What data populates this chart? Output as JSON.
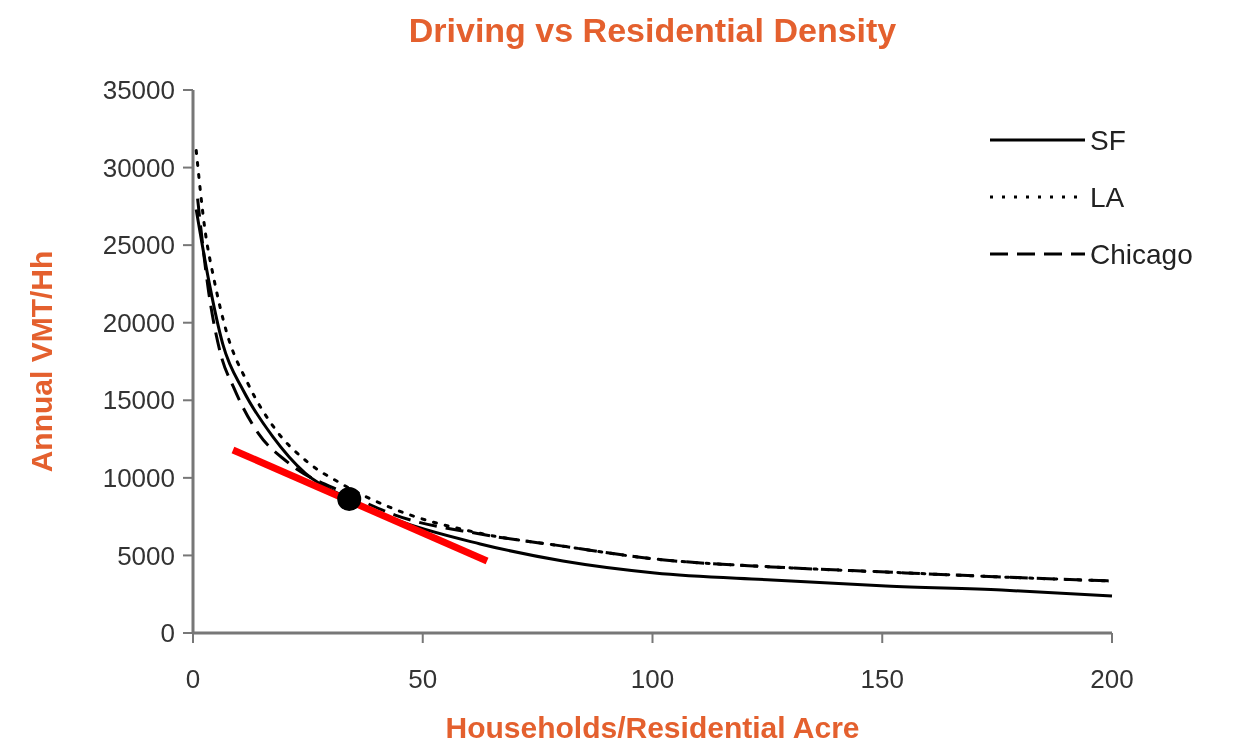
{
  "chart_data": {
    "type": "line",
    "title": "Driving vs Residential Density",
    "xlabel": "Households/Residential Acre",
    "ylabel": "Annual VMT/Hh",
    "xlim": [
      0,
      200
    ],
    "ylim": [
      0,
      35000
    ],
    "xticks": [
      0,
      50,
      100,
      150,
      200
    ],
    "yticks": [
      0,
      5000,
      10000,
      15000,
      20000,
      25000,
      30000,
      35000
    ],
    "legend": "top right",
    "grid": false,
    "series": [
      {
        "name": "SF",
        "color": "#000000",
        "line_style": "solid",
        "x": [
          0.7,
          3.4,
          6.5,
          11,
          17.4,
          24.4,
          34,
          43.7,
          62.5,
          80.5,
          100.5,
          126,
          150.8,
          176,
          200
        ],
        "values": [
          27300,
          22760,
          18600,
          15600,
          12640,
          10300,
          8640,
          7350,
          5740,
          4640,
          3870,
          3420,
          3030,
          2770,
          2390
        ]
      },
      {
        "name": "LA",
        "color": "#000000",
        "line_style": "dotted",
        "x": [
          0.7,
          2.6,
          4.6,
          7.2,
          12,
          18,
          25,
          32,
          43.7,
          63.3,
          80.5,
          100.5,
          126,
          150.8,
          176,
          200
        ],
        "values": [
          31100,
          26000,
          22760,
          19500,
          16050,
          13100,
          11000,
          9670,
          8000,
          6380,
          5600,
          4770,
          4260,
          3930,
          3610,
          3350
        ]
      },
      {
        "name": "Chicago",
        "color": "#000000",
        "line_style": "dashed",
        "x": [
          1,
          3.4,
          6,
          8.8,
          14.3,
          20.5,
          34,
          44,
          62.5,
          80.5,
          100.5,
          126,
          150.8,
          176,
          200
        ],
        "values": [
          28000,
          22000,
          18000,
          15860,
          12830,
          11030,
          8900,
          7600,
          6380,
          5600,
          4770,
          4260,
          3930,
          3610,
          3350
        ]
      },
      {
        "type": "line",
        "color": "#ff0000",
        "line_style": "solid",
        "x": [
          8.7,
          64
        ],
        "values": [
          11800,
          4640
        ]
      },
      {
        "type": "scatter",
        "color": "#000000",
        "marker": "circle",
        "x": [
          34
        ],
        "values": [
          8640
        ]
      }
    ]
  }
}
